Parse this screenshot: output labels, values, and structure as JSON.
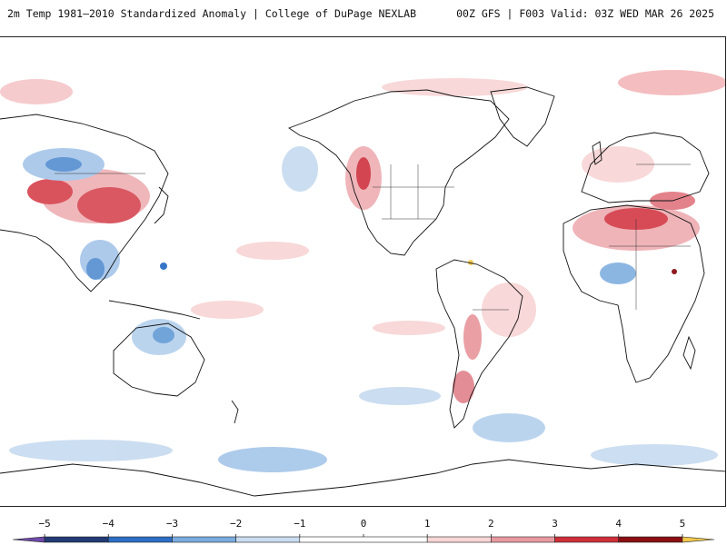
{
  "header": {
    "title_left": "2m Temp 1981–2010 Standardized Anomaly | College of DuPage NEXLAB",
    "title_right": "00Z GFS | F003 Valid: 03Z WED MAR 26 2025"
  },
  "map": {
    "projection": "global cylindrical",
    "field": "2m temperature standardized anomaly",
    "features": [
      "coastlines",
      "country borders",
      "US state borders"
    ]
  },
  "colorbar": {
    "ticks": [
      "−5",
      "−4",
      "−3",
      "−2",
      "−1",
      "0",
      "1",
      "2",
      "3",
      "4",
      "5"
    ],
    "bins": [
      {
        "from": -5.5,
        "to": -5,
        "color": "#6f4aa8"
      },
      {
        "from": -5,
        "to": -4,
        "color": "#223a74"
      },
      {
        "from": -4,
        "to": -3,
        "color": "#2c6ec4"
      },
      {
        "from": -3,
        "to": -2,
        "color": "#79acdf"
      },
      {
        "from": -2,
        "to": -1,
        "color": "#c9dcf0"
      },
      {
        "from": -1,
        "to": 1,
        "color": "#ffffff"
      },
      {
        "from": 1,
        "to": 2,
        "color": "#f8d6d6"
      },
      {
        "from": 2,
        "to": 3,
        "color": "#e99aa0"
      },
      {
        "from": 3,
        "to": 4,
        "color": "#cf2f38"
      },
      {
        "from": 4,
        "to": 5,
        "color": "#8a0e12"
      },
      {
        "from": 5,
        "to": 5.5,
        "color": "#f2c94c"
      }
    ]
  }
}
